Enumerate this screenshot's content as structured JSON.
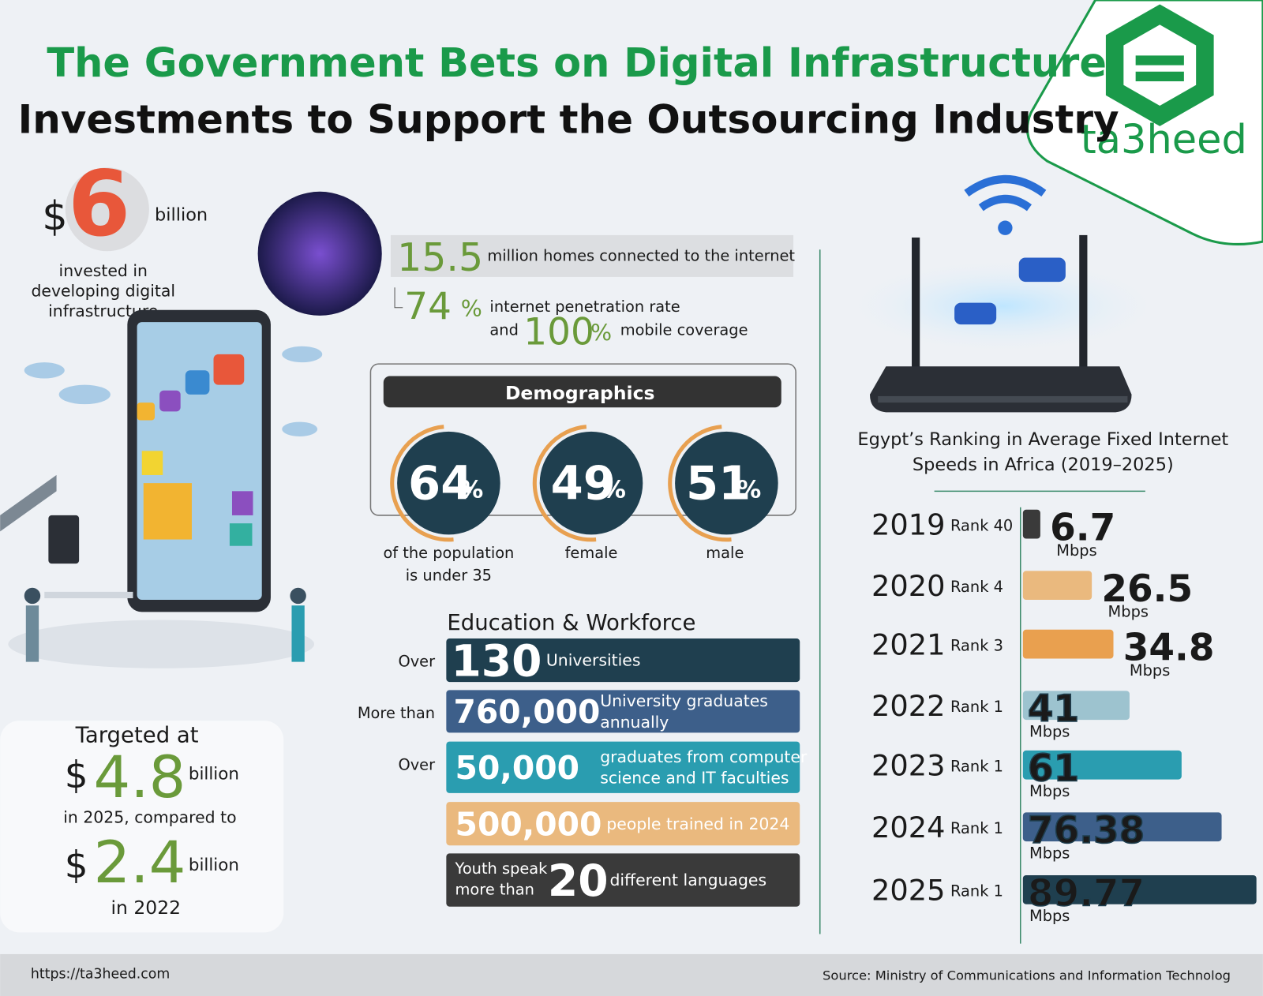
{
  "header": {
    "title": "The Government Bets on Digital Infrastructure",
    "subtitle": "Investments to Support the Outsourcing Industry",
    "logo": "ta3heed"
  },
  "investment": {
    "currency": "$",
    "amount": "6",
    "unit": "billion",
    "caption": [
      "invested in",
      "developing digital",
      "infrastructure"
    ]
  },
  "connectivity": {
    "homes": "15.5",
    "homes_text": "million homes connected to the internet",
    "penetration": "74",
    "percent": "%",
    "penetration_text": "internet penetration rate",
    "and": "and",
    "mobile": "100",
    "mobile_text": "mobile coverage"
  },
  "demographics": {
    "title": "Demographics",
    "percent": "%",
    "items": [
      {
        "value": "64",
        "caption": [
          "of the population",
          "is under 35"
        ]
      },
      {
        "value": "49",
        "caption": [
          "female"
        ]
      },
      {
        "value": "51",
        "caption": [
          "male"
        ]
      }
    ]
  },
  "education": {
    "title": "Education & Workforce",
    "rows": [
      {
        "prefix": "Over",
        "number": "130",
        "text": [
          "Universities"
        ]
      },
      {
        "prefix": "More than",
        "number": "760,000",
        "text": [
          "University graduates",
          "annually"
        ]
      },
      {
        "prefix": "Over",
        "number": "50,000",
        "text": [
          "graduates from computer",
          "science and IT faculties"
        ]
      },
      {
        "number": "500,000",
        "text": [
          "people trained in 2024"
        ]
      },
      {
        "lead": [
          "Youth speak",
          "more than"
        ],
        "number": "20",
        "text": [
          "different languages"
        ]
      }
    ]
  },
  "target": {
    "heading": "Targeted at",
    "currency": "$",
    "target_amount": "4.8",
    "unit": "billion",
    "middle": "in 2025, compared to",
    "base_amount": "2.4",
    "base_year": "in 2022"
  },
  "chart_data": {
    "type": "bar",
    "orientation": "horizontal",
    "title": [
      "Egypt’s Ranking in Average Fixed Internet",
      "Speeds in Africa (2019–2025)"
    ],
    "categories": [
      "2019",
      "2020",
      "2021",
      "2022",
      "2023",
      "2024",
      "2025"
    ],
    "ranks": [
      "Rank 40",
      "Rank 4",
      "Rank 3",
      "Rank 1",
      "Rank 1",
      "Rank 1",
      "Rank 1"
    ],
    "values": [
      6.7,
      26.5,
      34.8,
      41,
      61,
      76.38,
      89.77
    ],
    "unit": "Mbps",
    "colors": [
      "#3a3a3a",
      "#eab97e",
      "#e9a04f",
      "#9dc3cf",
      "#2a9db0",
      "#3d5f8a",
      "#1f3f4f"
    ]
  },
  "footer": {
    "url": "https://ta3heed.com",
    "source": "Source: Ministry of Communications and Information Technolog"
  }
}
